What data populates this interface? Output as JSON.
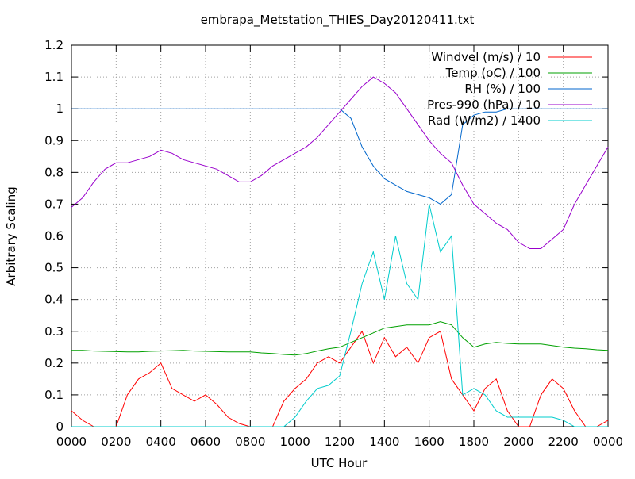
{
  "chart_data": {
    "type": "line",
    "title": "embrapa_Metstation_THIES_Day20120411.txt",
    "x_label": "UTC Hour",
    "y_label": "Arbitrary Scaling",
    "grid": true,
    "legend": "top-right",
    "xlim": [
      0,
      24
    ],
    "ylim": [
      0,
      1.2
    ],
    "xticks": [
      {
        "value": 0,
        "label": "0000"
      },
      {
        "value": 2,
        "label": "0200"
      },
      {
        "value": 4,
        "label": "0400"
      },
      {
        "value": 6,
        "label": "0600"
      },
      {
        "value": 8,
        "label": "0800"
      },
      {
        "value": 10,
        "label": "1000"
      },
      {
        "value": 12,
        "label": "1200"
      },
      {
        "value": 14,
        "label": "1400"
      },
      {
        "value": 16,
        "label": "1600"
      },
      {
        "value": 18,
        "label": "1800"
      },
      {
        "value": 20,
        "label": "2000"
      },
      {
        "value": 22,
        "label": "2200"
      },
      {
        "value": 24,
        "label": "0000"
      }
    ],
    "yticks": [
      0,
      0.1,
      0.2,
      0.3,
      0.4,
      0.5,
      0.6,
      0.7,
      0.8,
      0.9,
      1,
      1.1,
      1.2
    ],
    "x": [
      0,
      0.5,
      1,
      1.5,
      2,
      2.5,
      3,
      3.5,
      4,
      4.5,
      5,
      5.5,
      6,
      6.5,
      7,
      7.5,
      8,
      8.5,
      9,
      9.5,
      10,
      10.5,
      11,
      11.5,
      12,
      12.5,
      13,
      13.5,
      14,
      14.5,
      15,
      15.5,
      16,
      16.5,
      17,
      17.5,
      18,
      18.5,
      19,
      19.5,
      20,
      20.5,
      21,
      21.5,
      22,
      22.5,
      23,
      23.5,
      24
    ],
    "series": [
      {
        "name": "Windvel (m/s) / 10",
        "color": "#ff0000",
        "values": [
          0.05,
          0.02,
          0,
          0,
          0,
          0.1,
          0.15,
          0.17,
          0.2,
          0.12,
          0.1,
          0.08,
          0.1,
          0.07,
          0.03,
          0.01,
          0,
          0,
          0,
          0.08,
          0.12,
          0.15,
          0.2,
          0.22,
          0.2,
          0.25,
          0.3,
          0.2,
          0.28,
          0.22,
          0.25,
          0.2,
          0.28,
          0.3,
          0.15,
          0.1,
          0.05,
          0.12,
          0.15,
          0.05,
          0,
          0,
          0.1,
          0.15,
          0.12,
          0.05,
          0,
          0,
          0.02
        ]
      },
      {
        "name": "Temp (oC) / 100",
        "color": "#00a000",
        "values": [
          0.24,
          0.24,
          0.238,
          0.237,
          0.236,
          0.235,
          0.235,
          0.237,
          0.238,
          0.239,
          0.24,
          0.238,
          0.237,
          0.236,
          0.235,
          0.235,
          0.235,
          0.232,
          0.23,
          0.227,
          0.225,
          0.23,
          0.238,
          0.245,
          0.25,
          0.265,
          0.28,
          0.295,
          0.31,
          0.315,
          0.32,
          0.32,
          0.32,
          0.33,
          0.32,
          0.28,
          0.25,
          0.26,
          0.265,
          0.262,
          0.26,
          0.26,
          0.26,
          0.255,
          0.25,
          0.247,
          0.245,
          0.242,
          0.24
        ]
      },
      {
        "name": "RH (%) / 100",
        "color": "#0066cc",
        "values": [
          1,
          1,
          1,
          1,
          1,
          1,
          1,
          1,
          1,
          1,
          1,
          1,
          1,
          1,
          1,
          1,
          1,
          1,
          1,
          1,
          1,
          1,
          1,
          1,
          1,
          0.97,
          0.88,
          0.82,
          0.78,
          0.76,
          0.74,
          0.73,
          0.72,
          0.7,
          0.73,
          0.95,
          0.98,
          0.99,
          0.99,
          1,
          1,
          1,
          1,
          1,
          1,
          1,
          1,
          1,
          1
        ]
      },
      {
        "name": "Pres-990 (hPa) / 10",
        "color": "#9900cc",
        "values": [
          0.69,
          0.72,
          0.77,
          0.81,
          0.83,
          0.83,
          0.84,
          0.85,
          0.87,
          0.86,
          0.84,
          0.83,
          0.82,
          0.81,
          0.79,
          0.77,
          0.77,
          0.79,
          0.82,
          0.84,
          0.86,
          0.88,
          0.91,
          0.95,
          0.99,
          1.03,
          1.07,
          1.1,
          1.08,
          1.05,
          1,
          0.95,
          0.9,
          0.86,
          0.83,
          0.76,
          0.7,
          0.67,
          0.64,
          0.62,
          0.58,
          0.56,
          0.56,
          0.59,
          0.62,
          0.7,
          0.76,
          0.82,
          0.88
        ]
      },
      {
        "name": "Rad (W/m2) / 1400",
        "color": "#00cccc",
        "values": [
          0,
          0,
          0,
          0,
          0,
          0,
          0,
          0,
          0,
          0,
          0,
          0,
          0,
          0,
          0,
          0,
          0,
          0,
          0,
          0,
          0.03,
          0.08,
          0.12,
          0.13,
          0.16,
          0.3,
          0.45,
          0.55,
          0.4,
          0.6,
          0.45,
          0.4,
          0.7,
          0.55,
          0.6,
          0.1,
          0.12,
          0.1,
          0.05,
          0.03,
          0.03,
          0.03,
          0.03,
          0.03,
          0.02,
          0,
          0,
          0,
          0
        ]
      }
    ]
  }
}
